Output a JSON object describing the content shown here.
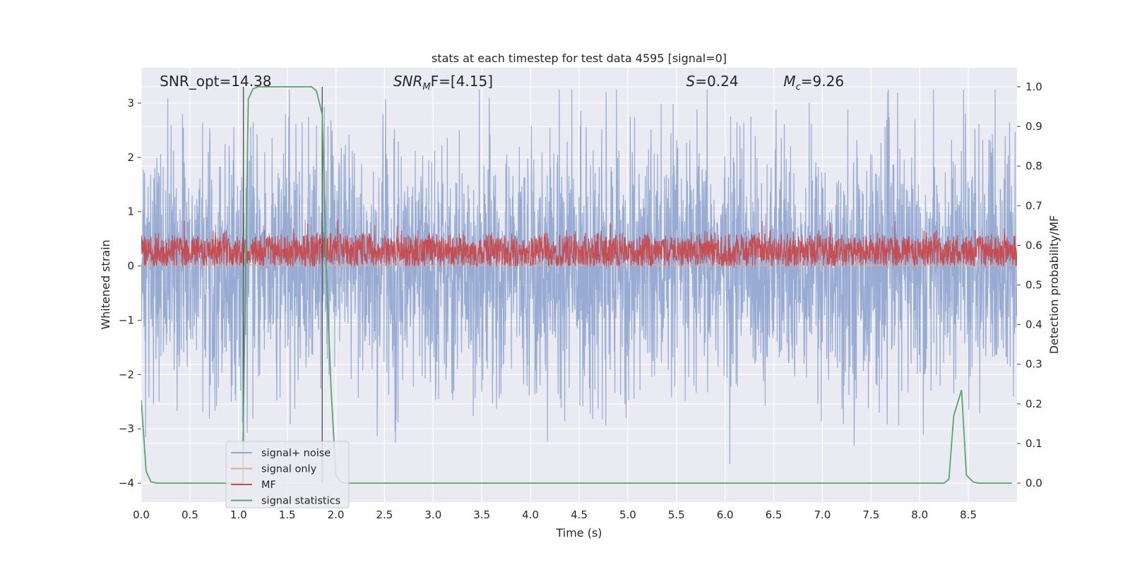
{
  "chart_data": {
    "type": "line",
    "title": "stats at each timestep for test data 4595 [signal=0]",
    "xlabel": "Time (s)",
    "ylabel": "Whitened strain",
    "y2label": "Detection probability/MF",
    "xlim": [
      0,
      9.0
    ],
    "ylim": [
      -4.35,
      3.65
    ],
    "y2lim": [
      -0.048,
      1.048
    ],
    "xticks": [
      0.0,
      0.5,
      1.0,
      1.5,
      2.0,
      2.5,
      3.0,
      3.5,
      4.0,
      4.5,
      5.0,
      5.5,
      6.0,
      6.5,
      7.0,
      7.5,
      8.0,
      8.5
    ],
    "yticks": [
      -4,
      -3,
      -2,
      -1,
      0,
      1,
      2,
      3
    ],
    "y2ticks": [
      0.0,
      0.1,
      0.2,
      0.3,
      0.4,
      0.5,
      0.6,
      0.7,
      0.8,
      0.9,
      1.0
    ],
    "grid": true,
    "legend_position": "lower-left",
    "annotations": [
      {
        "x": 0.19,
        "text": "SNR_opt=14.38"
      },
      {
        "x": 2.59,
        "text": "SNR_MF=[4.15]",
        "math": "SNR",
        "sub": "M",
        "tail": "F=[4.15]"
      },
      {
        "x": 5.6,
        "text": "S=0.24",
        "math": "S",
        "sub": "",
        "tail": "=0.24"
      },
      {
        "x": 6.6,
        "text": "M_c=9.26",
        "math": "M",
        "sub": "c",
        "tail": "=9.26"
      }
    ],
    "vertical_lines": [
      1.05,
      1.86
    ],
    "series": [
      {
        "name": "signal+ noise",
        "color": "#92a8d1",
        "style": "noise",
        "envelope": {
          "typical": 1.1,
          "max": 3.25,
          "min": -4.0
        }
      },
      {
        "name": "signal only",
        "color": "#e8a98a",
        "style": "flat",
        "values_y2": [
          0.55
        ]
      },
      {
        "name": "MF",
        "color": "#c44e52",
        "style": "band",
        "y_range": [
          0.0,
          1.0
        ]
      },
      {
        "name": "signal statistics",
        "color": "#55a868",
        "style": "line",
        "x": [
          0.0,
          0.05,
          0.1,
          0.15,
          0.2,
          0.3,
          0.5,
          1.0,
          1.04,
          1.07,
          1.1,
          1.15,
          1.2,
          1.3,
          1.5,
          1.75,
          1.8,
          1.86,
          1.9,
          1.95,
          2.0,
          2.05,
          2.1,
          2.5,
          3.0,
          4.0,
          5.0,
          6.0,
          7.0,
          8.0,
          8.25,
          8.3,
          8.35,
          8.43,
          8.48,
          8.55,
          8.6,
          8.7,
          8.95
        ],
        "y2": [
          0.21,
          0.03,
          0.003,
          0.0005,
          0.0,
          0.0,
          0.0,
          0.0,
          0.0,
          0.5,
          0.97,
          0.995,
          1.0,
          1.0,
          1.0,
          1.0,
          0.99,
          0.93,
          0.55,
          0.24,
          0.02,
          0.003,
          0.0,
          0.0,
          0.0,
          0.0,
          0.0,
          0.0,
          0.0,
          0.0,
          0.0,
          0.01,
          0.17,
          0.235,
          0.02,
          0.003,
          0.0,
          0.0,
          0.0
        ]
      }
    ]
  }
}
